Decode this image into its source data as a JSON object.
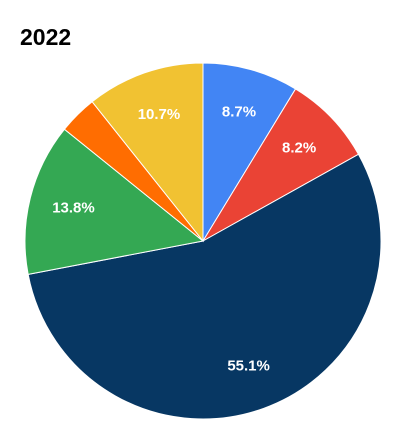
{
  "chart_data": {
    "type": "pie",
    "title": "2022",
    "values": [
      8.7,
      8.2,
      55.1,
      13.8,
      3.5,
      10.7
    ],
    "value_labels": [
      "8.7%",
      "8.2%",
      "55.1%",
      "13.8%",
      null,
      "10.7%"
    ],
    "colors": [
      "#4285f4",
      "#ea4335",
      "#073763",
      "#34a853",
      "#ff6d01",
      "#f1c232"
    ]
  }
}
